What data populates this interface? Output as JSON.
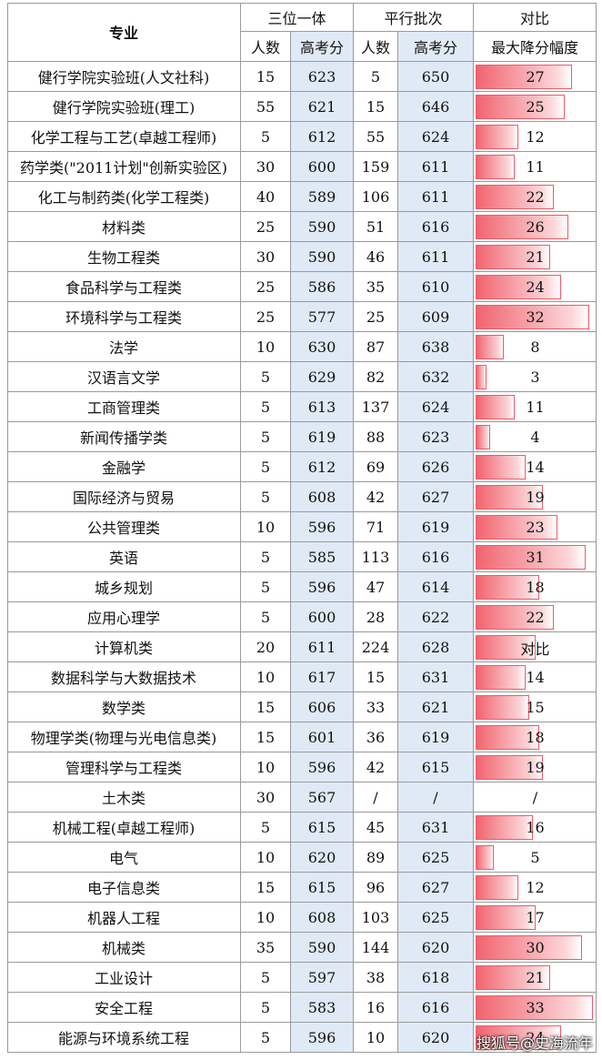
{
  "table": {
    "header": {
      "major": "专业",
      "group1": "三位一体",
      "group2": "平行批次",
      "group3": "对比",
      "columns": [
        "人数",
        "高考分",
        "人数",
        "高考分",
        "最大降分幅度"
      ]
    },
    "rows": [
      [
        "健行学院实验班(人文社科)",
        15,
        623,
        5,
        650,
        27
      ],
      [
        "健行学院实验班(理工)",
        55,
        621,
        15,
        646,
        25
      ],
      [
        "化学工程与工艺(卓越工程师)",
        5,
        612,
        55,
        624,
        12
      ],
      [
        "药学类(\"2011计划\"创新实验区)",
        30,
        600,
        159,
        611,
        11
      ],
      [
        "化工与制药类(化学工程类)",
        40,
        589,
        106,
        611,
        22
      ],
      [
        "材料类",
        25,
        590,
        51,
        616,
        26
      ],
      [
        "生物工程类",
        30,
        590,
        46,
        611,
        21
      ],
      [
        "食品科学与工程类",
        25,
        586,
        35,
        610,
        24
      ],
      [
        "环境科学与工程类",
        25,
        577,
        25,
        609,
        32
      ],
      [
        "法学",
        10,
        630,
        87,
        638,
        8
      ],
      [
        "汉语言文学",
        5,
        629,
        82,
        632,
        3
      ],
      [
        "工商管理类",
        5,
        613,
        137,
        624,
        11
      ],
      [
        "新闻传播学类",
        5,
        619,
        88,
        623,
        4
      ],
      [
        "金融学",
        5,
        612,
        69,
        626,
        14
      ],
      [
        "国际经济与贸易",
        5,
        608,
        42,
        627,
        19
      ],
      [
        "公共管理类",
        10,
        596,
        71,
        619,
        23
      ],
      [
        "英语",
        5,
        585,
        113,
        616,
        31
      ],
      [
        "城乡规划",
        5,
        596,
        47,
        614,
        18
      ],
      [
        "应用心理学",
        5,
        600,
        28,
        622,
        22
      ],
      [
        "计算机类",
        20,
        611,
        224,
        628,
        {
          "value": 17,
          "label": "对比"
        }
      ],
      [
        "数据科学与大数据技术",
        10,
        617,
        15,
        631,
        14
      ],
      [
        "数学类",
        15,
        606,
        33,
        621,
        15
      ],
      [
        "物理学类(物理与光电信息类)",
        15,
        601,
        36,
        619,
        18
      ],
      [
        "管理科学与工程类",
        10,
        596,
        42,
        615,
        19
      ],
      [
        "土木类",
        30,
        567,
        "/",
        "/",
        "/"
      ],
      [
        "机械工程(卓越工程师)",
        5,
        615,
        45,
        631,
        16
      ],
      [
        "电气",
        10,
        620,
        89,
        625,
        5
      ],
      [
        "电子信息类",
        15,
        615,
        96,
        627,
        12
      ],
      [
        "机器人工程",
        10,
        608,
        103,
        625,
        17
      ],
      [
        "机械类",
        35,
        590,
        144,
        620,
        30
      ],
      [
        "工业设计",
        5,
        597,
        38,
        618,
        21
      ],
      [
        "安全工程",
        5,
        583,
        16,
        616,
        33
      ],
      [
        "能源与环境系统工程",
        5,
        596,
        10,
        620,
        24
      ]
    ]
  },
  "watermark": "搜狐号@史海流年"
}
